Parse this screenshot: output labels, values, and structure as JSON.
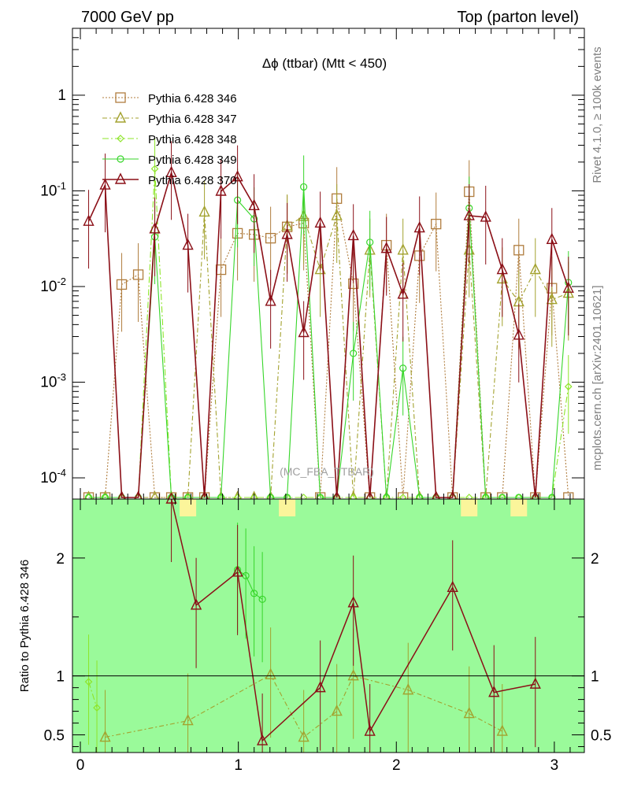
{
  "header": {
    "left": "7000 GeV pp",
    "right": "Top (parton level)"
  },
  "side_labels": {
    "rivet": "Rivet 4.1.0, ≥ 100k events",
    "mcplots": "mcplots.cern.ch [arXiv:2401.10621]"
  },
  "watermark": "(MC_FBA_TTBAR)",
  "colors": {
    "s346": "#b07d3e",
    "s347": "#a3a22f",
    "s348": "#8ee52a",
    "s349": "#37d62a",
    "s370": "#8b0f17",
    "band_green": "#9afa9a",
    "band_yellow": "#fbf59b"
  },
  "chart_data": [
    {
      "type": "line",
      "title": "Δϕ (ttbar) (Mtt < 450)",
      "xlabel": "",
      "ylabel": "",
      "yscale": "log",
      "xlim": [
        -0.05,
        3.19
      ],
      "ylim": [
        6e-05,
        5
      ],
      "yticks": [
        "10^-4",
        "10^-3",
        "10^-2",
        "10^-1",
        "1"
      ],
      "grid": false,
      "legend_position": "top-left",
      "x": [
        0.0524,
        0.1571,
        0.2618,
        0.3665,
        0.4712,
        0.576,
        0.6807,
        0.7854,
        0.8901,
        0.9948,
        1.0996,
        1.2043,
        1.309,
        1.4137,
        1.5184,
        1.6232,
        1.7279,
        1.8326,
        1.9373,
        2.042,
        2.1468,
        2.2515,
        2.3562,
        2.4609,
        2.5656,
        2.6704,
        2.7751,
        2.8798,
        2.9845,
        3.0892
      ],
      "series": [
        {
          "name": "Pythia 6.428 346",
          "marker": "square",
          "values": [
            0.0,
            0.0,
            0.0105,
            0.0133,
            0.0,
            0.0,
            0.0,
            0.0,
            0.015,
            0.036,
            0.035,
            0.032,
            0.042,
            0.046,
            0.0,
            0.083,
            0.0107,
            0.0,
            0.027,
            0.0,
            0.021,
            0.045,
            0.0,
            0.098,
            0.0,
            0.0,
            0.024,
            0.0,
            0.0096,
            0.0
          ]
        },
        {
          "name": "Pythia 6.428 347",
          "marker": "triangle",
          "values": [
            0.0,
            0.0,
            0.0,
            0.0,
            0.0,
            0.0,
            0.0,
            0.06,
            0.0,
            0.0,
            0.0,
            0.0,
            0.043,
            0.054,
            0.015,
            0.055,
            0.0,
            0.024,
            0.0,
            0.024,
            0.0,
            0.0,
            0.0,
            0.024,
            0.0,
            0.012,
            0.0069,
            0.015,
            0.0073,
            0.0085
          ]
        },
        {
          "name": "Pythia 6.428 348",
          "marker": "diamond",
          "values": [
            0.0,
            0.0,
            0.0,
            0.0,
            0.17,
            0.0,
            0.0,
            0.0,
            0.0,
            0.0,
            0.0,
            0.0,
            0.0,
            0.0,
            0.0,
            0.0,
            0.0,
            0.0,
            0.0,
            0.0,
            0.0,
            0.0,
            0.0,
            0.0,
            0.0,
            0.0,
            0.0,
            0.0,
            0.0,
            0.0009
          ]
        },
        {
          "name": "Pythia 6.428 349",
          "marker": "circle",
          "values": [
            0.0,
            0.0,
            0.0,
            0.0,
            0.033,
            0.0,
            0.0,
            0.0,
            0.0,
            0.08,
            0.051,
            0.0,
            0.0,
            0.11,
            0.0,
            0.0,
            0.002,
            0.029,
            0.0,
            0.0014,
            0.0,
            0.0,
            0.0,
            0.066,
            0.0,
            0.0,
            0.0,
            0.0,
            0.0,
            0.011
          ]
        },
        {
          "name": "Pythia 6.428 370",
          "marker": "triangle",
          "values": [
            0.048,
            0.115,
            0.0,
            0.0,
            0.04,
            0.155,
            0.027,
            0.0,
            0.099,
            0.14,
            0.07,
            0.007,
            0.035,
            0.0033,
            0.046,
            0.0,
            0.034,
            0.0,
            0.025,
            0.0083,
            0.041,
            0.0,
            0.0,
            0.055,
            0.053,
            0.015,
            0.0031,
            0.0,
            0.031,
            0.0096
          ]
        }
      ]
    },
    {
      "type": "line",
      "ylabel": "Ratio to Pythia 6.428 346",
      "xlim": [
        -0.05,
        3.19
      ],
      "ylim": [
        0.35,
        2.5
      ],
      "xticks": [
        "0",
        "1",
        "2",
        "3"
      ],
      "yticks": [
        "0.5",
        "1",
        "2"
      ],
      "reference_line": 1,
      "series": [
        {
          "name": "Pythia 6.428 348",
          "x": [
            0.0524,
            0.1047
          ],
          "values": [
            0.95,
            0.73
          ]
        },
        {
          "name": "Pythia 6.428 347",
          "x": [
            0.1571,
            0.6807,
            1.2043,
            1.4137,
            1.6232,
            1.7279,
            2.0748,
            2.4609,
            2.6704
          ],
          "values": [
            0.48,
            0.62,
            1.01,
            0.48,
            0.7,
            1.0,
            0.88,
            0.68,
            0.53
          ]
        },
        {
          "name": "Pythia 6.428 349",
          "x": [
            0.9948,
            1.0472,
            1.0996,
            1.1519
          ],
          "values": [
            1.9,
            1.85,
            1.7,
            1.65
          ]
        },
        {
          "name": "Pythia 6.428 370",
          "x": [
            0.576,
            0.733,
            0.9948,
            1.1519,
            1.5184,
            1.7279,
            1.8326,
            2.3562,
            2.618,
            2.8798
          ],
          "values": [
            2.5,
            1.6,
            1.88,
            0.45,
            0.9,
            1.62,
            0.53,
            1.75,
            0.86,
            0.93
          ]
        }
      ]
    }
  ]
}
